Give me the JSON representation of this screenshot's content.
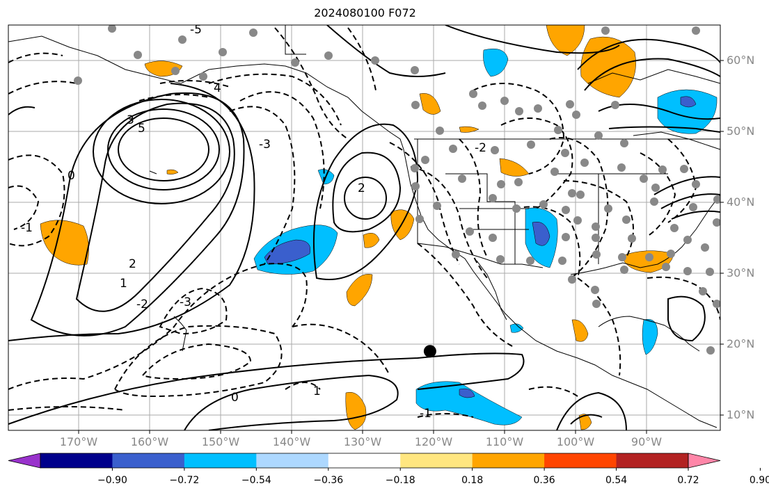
{
  "title": "2024080100 F072",
  "lat_labels": [
    {
      "value": "60°N",
      "lat": 60
    },
    {
      "value": "50°N",
      "lat": 50
    },
    {
      "value": "40°N",
      "lat": 40
    },
    {
      "value": "30°N",
      "lat": 30
    },
    {
      "value": "20°N",
      "lat": 20
    },
    {
      "value": "10°N",
      "lat": 10
    }
  ],
  "lon_labels": [
    {
      "value": "170°W",
      "lon": -170
    },
    {
      "value": "160°W",
      "lon": -160
    },
    {
      "value": "150°W",
      "lon": -150
    },
    {
      "value": "140°W",
      "lon": -140
    },
    {
      "value": "130°W",
      "lon": -130
    },
    {
      "value": "120°W",
      "lon": -120
    },
    {
      "value": "110°W",
      "lon": -110
    },
    {
      "value": "100°W",
      "lon": -100
    },
    {
      "value": "90°W",
      "lon": -90
    }
  ],
  "colorbar": {
    "colors": [
      "#9932cc",
      "#00008b",
      "#3a5fcd",
      "#00bfff",
      "#add8ff",
      "#ffffff",
      "#ffe680",
      "#ffa500",
      "#ff4500",
      "#b22222",
      "#ff86a8"
    ],
    "ticks": [
      "−0.90",
      "−0.72",
      "−0.54",
      "−0.36",
      "−0.18",
      "0.18",
      "0.36",
      "0.54",
      "0.72",
      "0.90"
    ]
  },
  "contour_labels": [
    "3",
    "5",
    "2",
    "1",
    "0",
    "-1",
    "-2",
    "-3",
    "4",
    "-5",
    "2",
    "1",
    "0",
    "-1",
    "-2",
    "-3"
  ],
  "marker": {
    "lon": -120.5,
    "lat": 19
  }
}
